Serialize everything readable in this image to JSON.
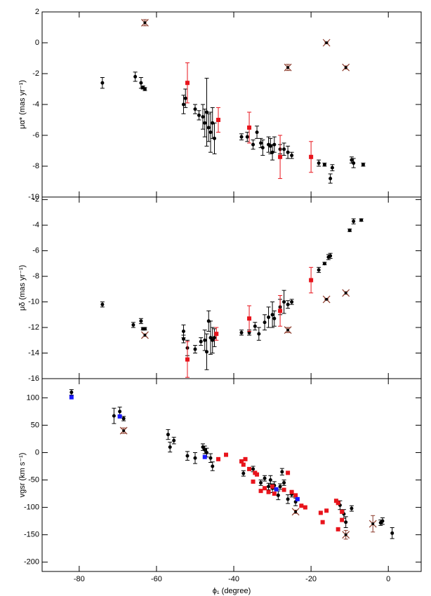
{
  "chart_data": [
    {
      "type": "scatter",
      "ylabel": "μα* (mas yr⁻¹)",
      "xlim": [
        -89.6,
        8.5
      ],
      "xticks": [
        -80,
        -60,
        -40,
        -20,
        0
      ],
      "ylim": [
        -10,
        2
      ],
      "yticks": [
        2,
        0,
        -2,
        -4,
        -6,
        -8,
        -10
      ],
      "series": [
        {
          "color": "#000000",
          "marker": "dot",
          "x": [
            -74,
            -65.5,
            -64,
            -63.5,
            -63,
            -53,
            -52.5,
            -50,
            -49,
            -48,
            -47.5,
            -47,
            -46.5,
            -46,
            -45.5,
            -45,
            -38,
            -36.5,
            -35,
            -34,
            -33,
            -32.5,
            -31,
            -30.5,
            -30,
            -29.5,
            -28,
            -27,
            -26,
            -25,
            -18,
            -16.5,
            -15,
            -14.5,
            -9.5,
            -9,
            -6.5
          ],
          "values": [
            -2.6,
            -2.2,
            -2.6,
            -2.9,
            -3.0,
            -4.0,
            -3.6,
            -4.3,
            -4.7,
            -4.8,
            -5.2,
            -4.5,
            -5.5,
            -5.8,
            -5.2,
            -6.2,
            -6.1,
            -6.1,
            -6.6,
            -5.8,
            -6.5,
            -6.8,
            -6.6,
            -6.7,
            -7.1,
            -6.6,
            -6.9,
            -6.9,
            -7.1,
            -7.3,
            -7.8,
            -7.9,
            -8.8,
            -8.1,
            -7.6,
            -7.8,
            -7.9
          ],
          "errors": [
            0.35,
            0.3,
            0.35,
            0.1,
            0.1,
            0.6,
            0.6,
            0.3,
            0.3,
            0.8,
            0.9,
            2.2,
            0.9,
            1.3,
            1,
            1,
            0.2,
            0.3,
            0.3,
            0.4,
            0.3,
            0.5,
            0.5,
            0.5,
            0.5,
            0.5,
            0.3,
            0.4,
            0.4,
            0.2,
            0.2,
            0.1,
            0.3,
            0.2,
            0.2,
            0.3,
            0.1
          ]
        },
        {
          "color": "#e8141c",
          "marker": "square",
          "x": [
            -52,
            -44,
            -36,
            -28,
            -20
          ],
          "values": [
            -2.6,
            -5,
            -5.5,
            -7.4,
            -7.4
          ],
          "errors": [
            1.3,
            0.8,
            1,
            1.4,
            1
          ]
        },
        {
          "color": "#8b3a2a",
          "marker": "cross",
          "x": [
            -63,
            -26,
            -16,
            -11
          ],
          "values": [
            1.3,
            -1.6,
            0,
            -1.6
          ],
          "errors": [
            0.2,
            0.2,
            0.05,
            0.1
          ]
        }
      ]
    },
    {
      "type": "scatter",
      "ylabel": "μδ (mas yr⁻¹)",
      "xlim": [
        -89.6,
        8.5
      ],
      "xticks": [
        -80,
        -60,
        -40,
        -20,
        0
      ],
      "ylim": [
        -16,
        -1.8
      ],
      "yticks": [
        -2,
        -4,
        -6,
        -8,
        -10,
        -12,
        -14,
        -16
      ],
      "series": [
        {
          "color": "#000000",
          "marker": "dot",
          "x": [
            -74,
            -66,
            -64,
            -63.5,
            -63,
            -53,
            -53,
            -52,
            -50,
            -48.5,
            -47.5,
            -47,
            -46.5,
            -46,
            -45.5,
            -45,
            -38,
            -36,
            -34.5,
            -33.5,
            -32,
            -31,
            -30,
            -29.5,
            -28,
            -27,
            -26,
            -25,
            -18,
            -16.5,
            -15.5,
            -15,
            -10,
            -9,
            -7
          ],
          "values": [
            -10.2,
            -11.8,
            -11.5,
            -12.1,
            -12.1,
            -12.3,
            -12.9,
            -13.6,
            -13.7,
            -13.1,
            -13,
            -13.9,
            -11.5,
            -12.8,
            -13,
            -12.8,
            -12.4,
            -12.4,
            -11.9,
            -12.5,
            -11.6,
            -11.2,
            -11,
            -11.3,
            -10.4,
            -10,
            -10.2,
            -10,
            -7.5,
            -7,
            -6.5,
            -6.4,
            -4.4,
            -3.7,
            -3.6
          ],
          "errors": [
            0.2,
            0.2,
            0.2,
            0.1,
            0.1,
            0.5,
            0.3,
            0.6,
            0.3,
            0.3,
            0.8,
            1.4,
            0.8,
            1.3,
            1,
            0.7,
            0.2,
            0.2,
            0.3,
            0.5,
            0.6,
            0.8,
            1,
            0.6,
            0.6,
            0.9,
            0.3,
            0.2,
            0.2,
            0.1,
            0.2,
            0.2,
            0.1,
            0.2,
            0.1
          ]
        },
        {
          "color": "#e8141c",
          "marker": "square",
          "x": [
            -52,
            -44.5,
            -36,
            -28,
            -20
          ],
          "values": [
            -14.5,
            -12.5,
            -11.3,
            -10.7,
            -8.3
          ],
          "errors": [
            1.4,
            0.5,
            1,
            1.2,
            1
          ]
        },
        {
          "color": "#8b3a2a",
          "marker": "cross",
          "x": [
            -63,
            -26,
            -16,
            -11
          ],
          "values": [
            -12.6,
            -12.2,
            -9.8,
            -9.3
          ],
          "errors": [
            0.1,
            0.2,
            0.05,
            0.1
          ]
        }
      ]
    },
    {
      "type": "scatter",
      "ylabel": "vgsr (km s⁻¹)",
      "xlabel": "ϕ₁ (degree)",
      "xlim": [
        -89.6,
        8.5
      ],
      "xticks": [
        -80,
        -60,
        -40,
        -20,
        0
      ],
      "ylim": [
        -217,
        135
      ],
      "yticks": [
        100,
        50,
        0,
        -50,
        -100,
        -150,
        -200
      ],
      "series": [
        {
          "color": "#000000",
          "marker": "dot",
          "x": [
            -82,
            -71,
            -69.5,
            -68.5,
            -57,
            -56.5,
            -55.5,
            -52,
            -50,
            -48,
            -47.5,
            -47,
            -46,
            -45.5,
            -37.5,
            -35,
            -33,
            -32,
            -31,
            -30.5,
            -30,
            -29.5,
            -28.5,
            -28,
            -27.5,
            -27,
            -26,
            -25,
            -24,
            -12.5,
            -11.5,
            -11,
            -9.5,
            -2,
            -1.5,
            1
          ],
          "values": [
            110,
            67,
            75,
            62,
            33,
            10,
            22,
            -6,
            -10,
            10,
            5,
            0,
            -10,
            -25,
            -38,
            -30,
            -55,
            -47,
            -62,
            -50,
            -65,
            -60,
            -78,
            -62,
            -35,
            -55,
            -85,
            -76,
            -90,
            -96,
            -112,
            -127,
            -102,
            -128,
            -125,
            -147
          ],
          "errors": [
            5,
            14,
            8,
            4,
            9,
            9,
            6,
            8,
            10,
            6,
            7,
            8,
            8,
            8,
            5,
            5,
            5,
            5,
            6,
            8,
            8,
            7,
            8,
            5,
            6,
            5,
            8,
            5,
            7,
            8,
            8,
            10,
            5,
            5,
            6,
            10
          ]
        },
        {
          "color": "#e8141c",
          "marker": "square",
          "x": [
            -44,
            -42,
            -38,
            -37.5,
            -37,
            -36,
            -35,
            -34.5,
            -34,
            -33,
            -32,
            -31,
            -30,
            -29.5,
            -27,
            -26,
            -25,
            -24,
            -22.5,
            -21.5,
            -17.5,
            -17,
            -16,
            -13.5,
            -13,
            -13,
            -12,
            -12
          ],
          "values": [
            -12,
            -4,
            -16,
            -22,
            -12,
            -30,
            -53,
            -37,
            -40,
            -70,
            -65,
            -72,
            -62,
            -75,
            -68,
            -37,
            -72,
            -78,
            -97,
            -100,
            -110,
            -127,
            -106,
            -88,
            -92,
            -140,
            -123,
            -108
          ]
        },
        {
          "color": "#1a1aff",
          "marker": "square",
          "x": [
            -82,
            -69.5,
            -47.5,
            -29,
            -23.5
          ],
          "values": [
            101,
            66,
            -8,
            -67,
            -85
          ]
        },
        {
          "color": "#8b3a2a",
          "marker": "cross",
          "x": [
            -68.5,
            -24,
            -11,
            -4
          ],
          "values": [
            40,
            -108,
            -150,
            -130
          ],
          "errors": [
            5,
            3,
            8,
            15
          ]
        }
      ]
    }
  ]
}
